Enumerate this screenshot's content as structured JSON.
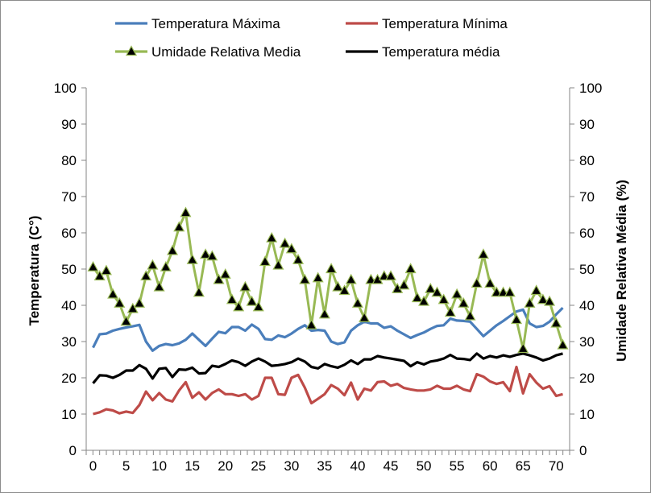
{
  "chart_data": {
    "type": "line",
    "xlabel": "",
    "ylabel": "Temperatura (C°)",
    "y2label": "Umidade Relativa Média (%)",
    "xlim": [
      0,
      72
    ],
    "ylim": [
      0,
      100
    ],
    "y2lim": [
      0,
      100
    ],
    "xticks": [
      0,
      5,
      10,
      15,
      20,
      25,
      30,
      35,
      40,
      45,
      50,
      55,
      60,
      65,
      70
    ],
    "yticks": [
      0,
      10,
      20,
      30,
      40,
      50,
      60,
      70,
      80,
      90,
      100
    ],
    "y2ticks": [
      0,
      10,
      20,
      30,
      40,
      50,
      60,
      70,
      80,
      90,
      100
    ],
    "grid": false,
    "legend_position": "top",
    "x": [
      0,
      1,
      2,
      3,
      4,
      5,
      6,
      7,
      8,
      9,
      10,
      11,
      12,
      13,
      14,
      15,
      16,
      17,
      18,
      19,
      20,
      21,
      22,
      23,
      24,
      25,
      26,
      27,
      28,
      29,
      30,
      31,
      32,
      33,
      34,
      35,
      36,
      37,
      38,
      39,
      40,
      41,
      42,
      43,
      44,
      45,
      46,
      47,
      48,
      49,
      50,
      51,
      52,
      53,
      54,
      55,
      56,
      57,
      58,
      59,
      60,
      61,
      62,
      63,
      64,
      65,
      66,
      67,
      68,
      69,
      70,
      71
    ],
    "series": [
      {
        "name": "Temperatura Máxima",
        "axis": "left",
        "color": "#4a7ebb",
        "marker": "none",
        "values": [
          28.3,
          32,
          32.2,
          33,
          33.5,
          33.9,
          34.2,
          34.6,
          30,
          27.5,
          28.8,
          29.3,
          29,
          29.5,
          30.5,
          32.2,
          30.5,
          28.8,
          30.8,
          32.7,
          32.3,
          34,
          34,
          33,
          34.7,
          33.5,
          30.7,
          30.5,
          31.7,
          31.2,
          32.2,
          33.5,
          34.5,
          33,
          33.2,
          33,
          30,
          29.3,
          29.8,
          33,
          34.5,
          35.5,
          35,
          35,
          33.8,
          34.2,
          33,
          32,
          31,
          31.8,
          32.5,
          33.5,
          34.3,
          34.5,
          36.3,
          35.8,
          35.7,
          35.5,
          33.5,
          31.5,
          33,
          34.5,
          35.7,
          37,
          38.3,
          38.8,
          35,
          34,
          34.3,
          35.5,
          37.5,
          39.3
        ]
      },
      {
        "name": "Temperatura Mínima",
        "axis": "left",
        "color": "#be4b48",
        "marker": "none",
        "values": [
          10,
          10.5,
          11.3,
          11,
          10.2,
          10.7,
          10.3,
          12.5,
          16.2,
          13.8,
          15.8,
          14,
          13.5,
          16.5,
          18.8,
          14.5,
          16,
          14,
          15.8,
          16.8,
          15.5,
          15.5,
          15,
          15.5,
          14,
          15,
          20,
          20,
          15.5,
          15.3,
          20,
          20.8,
          17.3,
          13,
          14.2,
          15.5,
          18,
          17,
          15.2,
          18.7,
          14,
          17,
          16.5,
          18.8,
          19,
          17.8,
          18.3,
          17.2,
          16.8,
          16.5,
          16.5,
          16.8,
          17.8,
          17,
          17,
          17.8,
          16.8,
          16.3,
          21,
          20.3,
          19,
          18.3,
          18.8,
          16.3,
          23,
          15.7,
          21,
          18.7,
          17,
          17.7,
          15,
          15.5
        ]
      },
      {
        "name": "Umidade Relativa Media",
        "axis": "right",
        "color": "#98b954",
        "marker": "triangle",
        "values": [
          50.5,
          48,
          49.5,
          43,
          40.5,
          35.5,
          39,
          40.5,
          48,
          51,
          45,
          50.5,
          55,
          61.5,
          65.5,
          52.5,
          43.5,
          54,
          53.5,
          47,
          48.5,
          41.5,
          39.5,
          45,
          41,
          39.5,
          52,
          58.5,
          51,
          57,
          55.5,
          52.5,
          47,
          34.5,
          47.5,
          37.5,
          50,
          45,
          44,
          47,
          40.5,
          36.5,
          47,
          47,
          48,
          48,
          44.5,
          45.5,
          50,
          42,
          41,
          44.5,
          43.5,
          41.5,
          38,
          43,
          40.5,
          37,
          46,
          54,
          46,
          43.5,
          43.5,
          43.5,
          36,
          28,
          40.5,
          44,
          41.5,
          41,
          35,
          29
        ]
      },
      {
        "name": "Temperatura média",
        "axis": "left",
        "color": "#000000",
        "marker": "none",
        "values": [
          18.5,
          20.7,
          20.6,
          20,
          20.8,
          22,
          22,
          23.5,
          22.5,
          19.8,
          22.5,
          22.7,
          20.2,
          22.3,
          22.2,
          22.8,
          21.2,
          21.3,
          23.3,
          23,
          23.8,
          24.8,
          24.3,
          23.3,
          24.5,
          25.3,
          24.5,
          23.3,
          23.5,
          23.8,
          24.3,
          25.3,
          24.5,
          23,
          22.6,
          23.8,
          23.2,
          22.8,
          23.6,
          24.8,
          23.8,
          25.1,
          25.1,
          26,
          25.6,
          25.3,
          25,
          24.7,
          23.2,
          24.3,
          23.7,
          24.5,
          24.8,
          25.3,
          26.3,
          25.3,
          25.2,
          24.9,
          26.7,
          25.3,
          26,
          25.6,
          26.2,
          25.8,
          26.3,
          26.7,
          26.2,
          25.6,
          24.8,
          25.3,
          26.2,
          26.7
        ]
      }
    ]
  }
}
